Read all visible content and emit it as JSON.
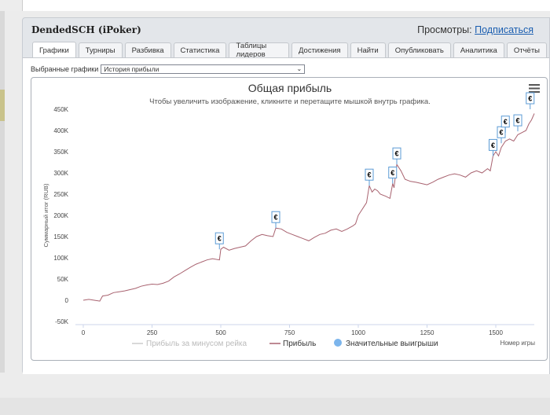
{
  "header": {
    "title": "DendedSCH (iPoker)",
    "views_label": "Просмотры:",
    "subscribe_label": "Подписаться"
  },
  "tabs": [
    {
      "label": "Графики",
      "active": true
    },
    {
      "label": "Турниры"
    },
    {
      "label": "Разбивка"
    },
    {
      "label": "Статистика"
    },
    {
      "label": "Таблицы лидеров"
    },
    {
      "label": "Достижения"
    },
    {
      "label": "Найти"
    },
    {
      "label": "Опубликовать"
    },
    {
      "label": "Аналитика"
    },
    {
      "label": "Отчёты"
    }
  ],
  "graph_select": {
    "label": "Выбранные графики",
    "value": "История прибыли"
  },
  "colors": {
    "profit_line": "#a8626f",
    "rake_line": "#cccccc",
    "big_win": "#7cb5ec",
    "marker_border": "#5b9bd5"
  },
  "chart_data": {
    "type": "line",
    "title": "Общая прибыль",
    "subtitle": "Чтобы увеличить изображение, кликните и перетащите мышкой внутрь графика.",
    "xlabel": "Номер игры",
    "ylabel": "Суммарный итог (RUB)",
    "xlim": [
      0,
      1640
    ],
    "ylim": [
      -50000,
      450000
    ],
    "x_ticks": [
      0,
      250,
      500,
      750,
      1000,
      1250,
      1500
    ],
    "y_ticks": [
      -50000,
      0,
      50000,
      100000,
      150000,
      200000,
      250000,
      300000,
      350000,
      400000,
      450000
    ],
    "y_tick_labels": [
      "-50K",
      "0",
      "50K",
      "100K",
      "150K",
      "200K",
      "250K",
      "300K",
      "350K",
      "400K",
      "450K"
    ],
    "x_tick_labels": [
      "0",
      "250",
      "500",
      "750",
      "1000",
      "1250",
      "1500"
    ],
    "series": [
      {
        "name": "Прибыль",
        "points": [
          [
            0,
            0
          ],
          [
            20,
            2000
          ],
          [
            40,
            0
          ],
          [
            60,
            -2000
          ],
          [
            70,
            10000
          ],
          [
            90,
            12000
          ],
          [
            110,
            18000
          ],
          [
            130,
            20000
          ],
          [
            150,
            22000
          ],
          [
            170,
            25000
          ],
          [
            190,
            28000
          ],
          [
            210,
            33000
          ],
          [
            230,
            36000
          ],
          [
            250,
            38000
          ],
          [
            270,
            37000
          ],
          [
            290,
            40000
          ],
          [
            310,
            45000
          ],
          [
            330,
            55000
          ],
          [
            350,
            62000
          ],
          [
            370,
            70000
          ],
          [
            390,
            78000
          ],
          [
            410,
            85000
          ],
          [
            430,
            90000
          ],
          [
            450,
            95000
          ],
          [
            470,
            98000
          ],
          [
            495,
            95000
          ],
          [
            500,
            120000
          ],
          [
            510,
            125000
          ],
          [
            530,
            118000
          ],
          [
            550,
            122000
          ],
          [
            570,
            125000
          ],
          [
            590,
            128000
          ],
          [
            610,
            140000
          ],
          [
            630,
            150000
          ],
          [
            650,
            155000
          ],
          [
            670,
            152000
          ],
          [
            690,
            150000
          ],
          [
            700,
            170000
          ],
          [
            720,
            168000
          ],
          [
            740,
            160000
          ],
          [
            760,
            155000
          ],
          [
            780,
            150000
          ],
          [
            800,
            145000
          ],
          [
            820,
            140000
          ],
          [
            840,
            148000
          ],
          [
            860,
            155000
          ],
          [
            880,
            158000
          ],
          [
            900,
            165000
          ],
          [
            920,
            168000
          ],
          [
            940,
            162000
          ],
          [
            960,
            168000
          ],
          [
            980,
            175000
          ],
          [
            990,
            180000
          ],
          [
            1000,
            200000
          ],
          [
            1010,
            210000
          ],
          [
            1020,
            220000
          ],
          [
            1030,
            230000
          ],
          [
            1040,
            270000
          ],
          [
            1050,
            255000
          ],
          [
            1060,
            262000
          ],
          [
            1070,
            258000
          ],
          [
            1080,
            250000
          ],
          [
            1100,
            245000
          ],
          [
            1115,
            240000
          ],
          [
            1125,
            275000
          ],
          [
            1130,
            265000
          ],
          [
            1140,
            320000
          ],
          [
            1155,
            305000
          ],
          [
            1170,
            285000
          ],
          [
            1190,
            280000
          ],
          [
            1210,
            278000
          ],
          [
            1230,
            275000
          ],
          [
            1250,
            272000
          ],
          [
            1270,
            278000
          ],
          [
            1290,
            285000
          ],
          [
            1310,
            290000
          ],
          [
            1330,
            295000
          ],
          [
            1350,
            298000
          ],
          [
            1370,
            295000
          ],
          [
            1390,
            290000
          ],
          [
            1410,
            300000
          ],
          [
            1430,
            305000
          ],
          [
            1450,
            300000
          ],
          [
            1470,
            310000
          ],
          [
            1480,
            305000
          ],
          [
            1490,
            340000
          ],
          [
            1500,
            350000
          ],
          [
            1510,
            340000
          ],
          [
            1520,
            360000
          ],
          [
            1535,
            375000
          ],
          [
            1550,
            380000
          ],
          [
            1565,
            375000
          ],
          [
            1580,
            390000
          ],
          [
            1595,
            395000
          ],
          [
            1610,
            400000
          ],
          [
            1620,
            415000
          ],
          [
            1630,
            425000
          ],
          [
            1640,
            440000
          ]
        ]
      },
      {
        "name": "Прибыль за минусом рейка"
      },
      {
        "name": "Значительные выигрыши",
        "markers": [
          {
            "x": 495,
            "y": 120000,
            "symbol": "€"
          },
          {
            "x": 700,
            "y": 170000,
            "symbol": "€"
          },
          {
            "x": 1040,
            "y": 270000,
            "symbol": "€"
          },
          {
            "x": 1125,
            "y": 275000,
            "symbol": "€"
          },
          {
            "x": 1140,
            "y": 320000,
            "symbol": "€"
          },
          {
            "x": 1490,
            "y": 340000,
            "symbol": "€"
          },
          {
            "x": 1520,
            "y": 370000,
            "symbol": "€"
          },
          {
            "x": 1535,
            "y": 395000,
            "symbol": "€"
          },
          {
            "x": 1580,
            "y": 398000,
            "symbol": "€"
          },
          {
            "x": 1625,
            "y": 450000,
            "symbol": "€"
          }
        ]
      }
    ],
    "legend_placement": "bottom-center",
    "grid": false
  }
}
